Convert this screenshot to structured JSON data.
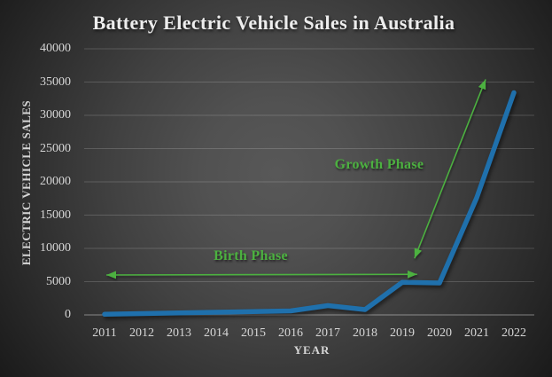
{
  "chart_data": {
    "type": "line",
    "title": "Battery Electric Vehicle Sales in Australia",
    "xlabel": "YEAR",
    "ylabel": "ELECTRIC VEHICLE SALES",
    "x": [
      2011,
      2012,
      2013,
      2014,
      2015,
      2016,
      2017,
      2018,
      2019,
      2020,
      2021,
      2022
    ],
    "values": [
      100,
      200,
      300,
      400,
      500,
      600,
      1400,
      800,
      4900,
      4800,
      17600,
      33400
    ],
    "ylim": [
      0,
      40000
    ],
    "yticks": [
      0,
      5000,
      10000,
      15000,
      20000,
      25000,
      30000,
      35000,
      40000
    ],
    "grid": "horizontal",
    "legend": "none",
    "line_color": "#1F70AC",
    "annotation_color": "#4CB140",
    "annotations": [
      {
        "id": "birth-phase",
        "label": "Birth Phase",
        "label_year": 2014.93,
        "label_value": 8800,
        "double_headed": true,
        "arrow": {
          "from_year": 2011.05,
          "from_value": 6000,
          "to_year": 2019.4,
          "to_value": 6100
        }
      },
      {
        "id": "growth-phase",
        "label": "Growth Phase",
        "label_year": 2018.38,
        "label_value": 22500,
        "double_headed": true,
        "arrow": {
          "from_year": 2019.33,
          "from_value": 8500,
          "to_year": 2021.24,
          "to_value": 35400
        }
      }
    ]
  }
}
